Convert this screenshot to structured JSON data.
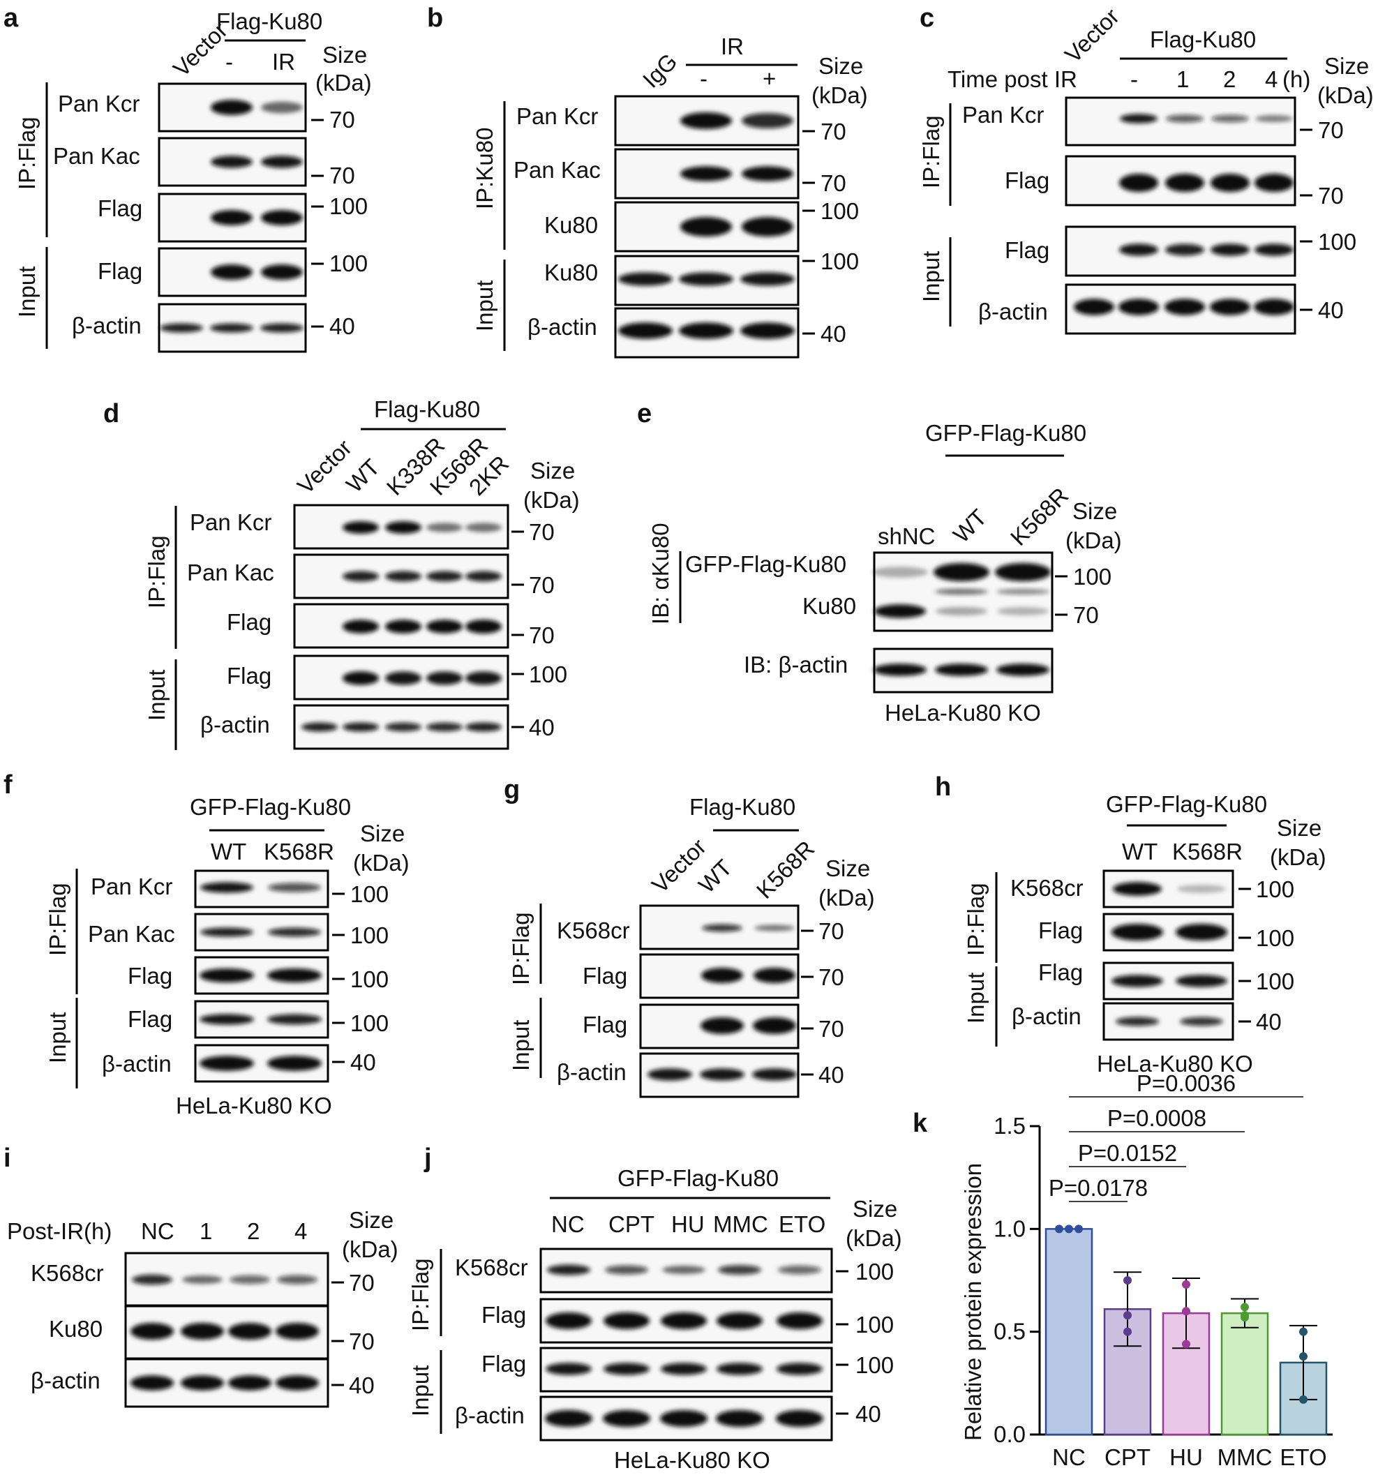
{
  "panels": {
    "a": {
      "letter": "a",
      "header": "Flag-Ku80",
      "lanes": [
        "Vector",
        "-",
        "IR"
      ],
      "size_label": [
        "Size",
        "(kDa)"
      ],
      "groups": [
        "IP:Flag",
        "Input"
      ],
      "rows": [
        "Pan Kcr",
        "Pan Kac",
        "Flag",
        "Flag",
        "β-actin"
      ],
      "markers": [
        "70",
        "70",
        "100",
        "100",
        "40"
      ]
    },
    "b": {
      "letter": "b",
      "header": "IR",
      "lanes": [
        "IgG",
        "-",
        "+"
      ],
      "size_label": [
        "Size",
        "(kDa)"
      ],
      "groups": [
        "IP:Ku80",
        "Input"
      ],
      "rows": [
        "Pan Kcr",
        "Pan Kac",
        "Ku80",
        "Ku80",
        "β-actin"
      ],
      "markers": [
        "70",
        "70",
        "100",
        "100",
        "40"
      ]
    },
    "c": {
      "letter": "c",
      "header": "Flag-Ku80",
      "time_label": "Time post IR",
      "lanes": [
        "Vector",
        "-",
        "1",
        "2",
        "4",
        "(h)"
      ],
      "size_label": [
        "Size",
        "(kDa)"
      ],
      "groups": [
        "IP:Flag",
        "Input"
      ],
      "rows": [
        "Pan Kcr",
        "Flag",
        "Flag",
        "β-actin"
      ],
      "markers": [
        "70",
        "70",
        "100",
        "40"
      ]
    },
    "d": {
      "letter": "d",
      "header": "Flag-Ku80",
      "lanes": [
        "Vector",
        "WT",
        "K338R",
        "K568R",
        "2KR"
      ],
      "size_label": [
        "Size",
        "(kDa)"
      ],
      "groups": [
        "IP:Flag",
        "Input"
      ],
      "rows": [
        "Pan Kcr",
        "Pan Kac",
        "Flag",
        "Flag",
        "β-actin"
      ],
      "markers": [
        "70",
        "70",
        "70",
        "100",
        "40"
      ]
    },
    "e": {
      "letter": "e",
      "header": "GFP-Flag-Ku80",
      "lanes": [
        "shNC",
        "WT",
        "K568R"
      ],
      "size_label": [
        "Size",
        "(kDa)"
      ],
      "groups": [
        "IB: αKu80"
      ],
      "rows": [
        "GFP-Flag-Ku80",
        "Ku80",
        "IB: β-actin"
      ],
      "markers": [
        "100",
        "70"
      ],
      "footer": "HeLa-Ku80 KO"
    },
    "f": {
      "letter": "f",
      "header": "GFP-Flag-Ku80",
      "lanes": [
        "WT",
        "K568R"
      ],
      "size_label": [
        "Size",
        "(kDa)"
      ],
      "groups": [
        "IP:Flag",
        "Input"
      ],
      "rows": [
        "Pan Kcr",
        "Pan Kac",
        "Flag",
        "Flag",
        "β-actin"
      ],
      "markers": [
        "100",
        "100",
        "100",
        "100",
        "40"
      ],
      "footer": "HeLa-Ku80 KO"
    },
    "g": {
      "letter": "g",
      "header": "Flag-Ku80",
      "lanes": [
        "Vector",
        "WT",
        "K568R"
      ],
      "size_label": [
        "Size",
        "(kDa)"
      ],
      "groups": [
        "IP:Flag",
        "Input"
      ],
      "rows": [
        "K568cr",
        "Flag",
        "Flag",
        "β-actin"
      ],
      "markers": [
        "70",
        "70",
        "70",
        "40"
      ]
    },
    "h": {
      "letter": "h",
      "header": "GFP-Flag-Ku80",
      "lanes": [
        "WT",
        "K568R"
      ],
      "size_label": [
        "Size",
        "(kDa)"
      ],
      "groups": [
        "IP:Flag",
        "Input"
      ],
      "rows": [
        "K568cr",
        "Flag",
        "Flag",
        "β-actin"
      ],
      "markers": [
        "100",
        "100",
        "100",
        "40"
      ],
      "footer": "HeLa-Ku80 KO"
    },
    "i": {
      "letter": "i",
      "lane_label": "Post-IR(h)",
      "lanes": [
        "NC",
        "1",
        "2",
        "4"
      ],
      "size_label": [
        "Size",
        "(kDa)"
      ],
      "rows": [
        "K568cr",
        "Ku80",
        "β-actin"
      ],
      "markers": [
        "70",
        "70",
        "40"
      ]
    },
    "j": {
      "letter": "j",
      "header": "GFP-Flag-Ku80",
      "lanes": [
        "NC",
        "CPT",
        "HU",
        "MMC",
        "ETO"
      ],
      "size_label": [
        "Size",
        "(kDa)"
      ],
      "groups": [
        "IP:Flag",
        "Input"
      ],
      "rows": [
        "K568cr",
        "Flag",
        "Flag",
        "β-actin"
      ],
      "markers": [
        "100",
        "100",
        "100",
        "40"
      ],
      "footer": "HeLa-Ku80 KO"
    },
    "k": {
      "letter": "k"
    }
  },
  "chart_data": {
    "type": "bar",
    "categories": [
      "NC",
      "CPT",
      "HU",
      "MMC",
      "ETO"
    ],
    "values": [
      1.0,
      0.61,
      0.59,
      0.59,
      0.35
    ],
    "errors": [
      0.0,
      0.18,
      0.17,
      0.07,
      0.18
    ],
    "points": [
      [
        1.0,
        1.0,
        1.0
      ],
      [
        0.75,
        0.58,
        0.5
      ],
      [
        0.73,
        0.6,
        0.44
      ],
      [
        0.62,
        0.58,
        0.57
      ],
      [
        0.5,
        0.38,
        0.17
      ]
    ],
    "colors": {
      "fill": [
        "#b7c8e6",
        "#cbbfe0",
        "#e9c7e6",
        "#cfeec2",
        "#b8d2de"
      ],
      "edge": [
        "#2f4f9e",
        "#5b3c8f",
        "#a0389a",
        "#4e9a32",
        "#22546a"
      ]
    },
    "xlabel": "",
    "ylabel": "Relative protein expression",
    "ylim": [
      0,
      1.5
    ],
    "yticks": [
      "0.0",
      "0.5",
      "1.0",
      "1.5"
    ],
    "significance": [
      {
        "from": "NC",
        "to": "CPT",
        "label": "P=0.0178"
      },
      {
        "from": "NC",
        "to": "HU",
        "label": "P=0.0152"
      },
      {
        "from": "NC",
        "to": "MMC",
        "label": "P=0.0008"
      },
      {
        "from": "NC",
        "to": "ETO",
        "label": "P=0.0036"
      }
    ]
  }
}
